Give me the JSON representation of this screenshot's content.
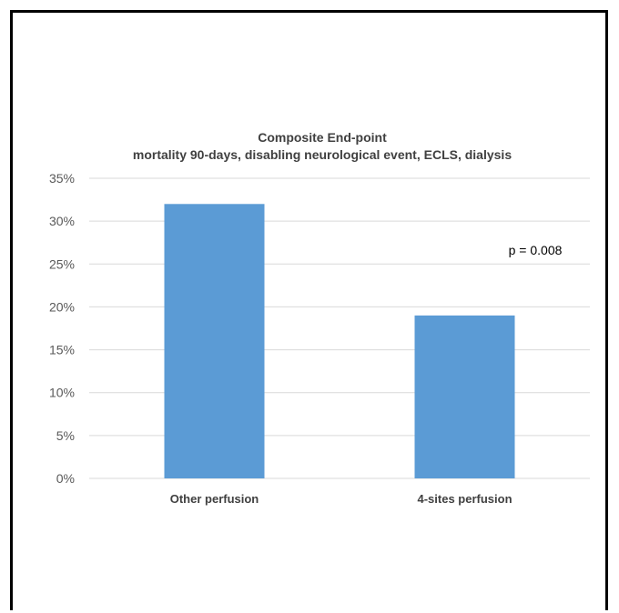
{
  "chart_data": {
    "type": "bar",
    "title": "Composite End-point",
    "subtitle": "mortality 90-days,  disabling neurological event, ECLS, dialysis",
    "categories": [
      "Other perfusion",
      "4-sites perfusion"
    ],
    "values": [
      32,
      19
    ],
    "ylim": [
      0,
      35
    ],
    "yticks": [
      0,
      5,
      10,
      15,
      20,
      25,
      30,
      35
    ],
    "ytick_labels": [
      "0%",
      "5%",
      "10%",
      "15%",
      "20%",
      "25%",
      "30%",
      "35%"
    ],
    "annotation": "p = 0.008",
    "grid": true,
    "bar_color": "#5B9BD5",
    "grid_color": "#D9D9D9"
  }
}
